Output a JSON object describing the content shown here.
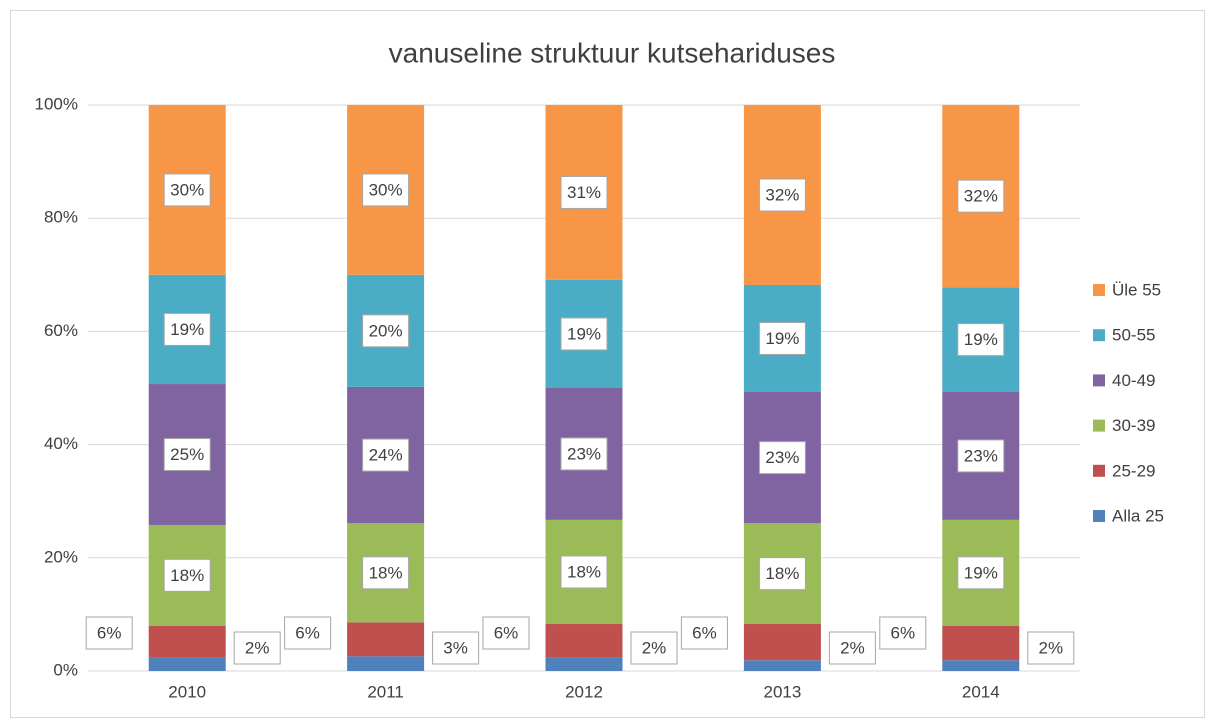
{
  "chart_data": {
    "type": "stacked_bar",
    "title": "vanuseline struktuur kutsehariduses",
    "categories": [
      "2010",
      "2011",
      "2012",
      "2013",
      "2014"
    ],
    "series": [
      {
        "name": "Alla 25",
        "color": "#4f81bd",
        "values": [
          2.4,
          2.6,
          2.4,
          1.9,
          1.9
        ],
        "value_labels": [
          "2%",
          "3%",
          "2%",
          "2%",
          "2%"
        ]
      },
      {
        "name": "25-29",
        "color": "#c0504d",
        "values": [
          5.6,
          6.0,
          5.9,
          6.4,
          6.1
        ],
        "value_labels": [
          "6%",
          "6%",
          "6%",
          "6%",
          "6%"
        ]
      },
      {
        "name": "30-39",
        "color": "#9bbb59",
        "values": [
          17.8,
          17.5,
          18.4,
          17.8,
          18.7
        ],
        "value_labels": [
          "18%",
          "18%",
          "18%",
          "18%",
          "19%"
        ]
      },
      {
        "name": "40-49",
        "color": "#8064a2",
        "values": [
          24.9,
          24.1,
          23.3,
          23.2,
          22.6
        ],
        "value_labels": [
          "25%",
          "24%",
          "23%",
          "23%",
          "23%"
        ]
      },
      {
        "name": "50-55",
        "color": "#4bacc6",
        "values": [
          19.3,
          19.8,
          19.1,
          18.9,
          18.5
        ],
        "value_labels": [
          "19%",
          "20%",
          "19%",
          "19%",
          "19%"
        ]
      },
      {
        "name": "Üle 55",
        "color": "#f79646",
        "values": [
          30.0,
          30.0,
          30.9,
          31.8,
          32.2
        ],
        "value_labels": [
          "30%",
          "30%",
          "31%",
          "32%",
          "32%"
        ]
      }
    ],
    "ylim": [
      0,
      100
    ],
    "yticks": [
      {
        "value": 0,
        "label": "0%"
      },
      {
        "value": 20,
        "label": "20%"
      },
      {
        "value": 40,
        "label": "40%"
      },
      {
        "value": 60,
        "label": "60%"
      },
      {
        "value": 80,
        "label": "80%"
      },
      {
        "value": 100,
        "label": "100%"
      }
    ],
    "grid": true,
    "legend": "right"
  }
}
